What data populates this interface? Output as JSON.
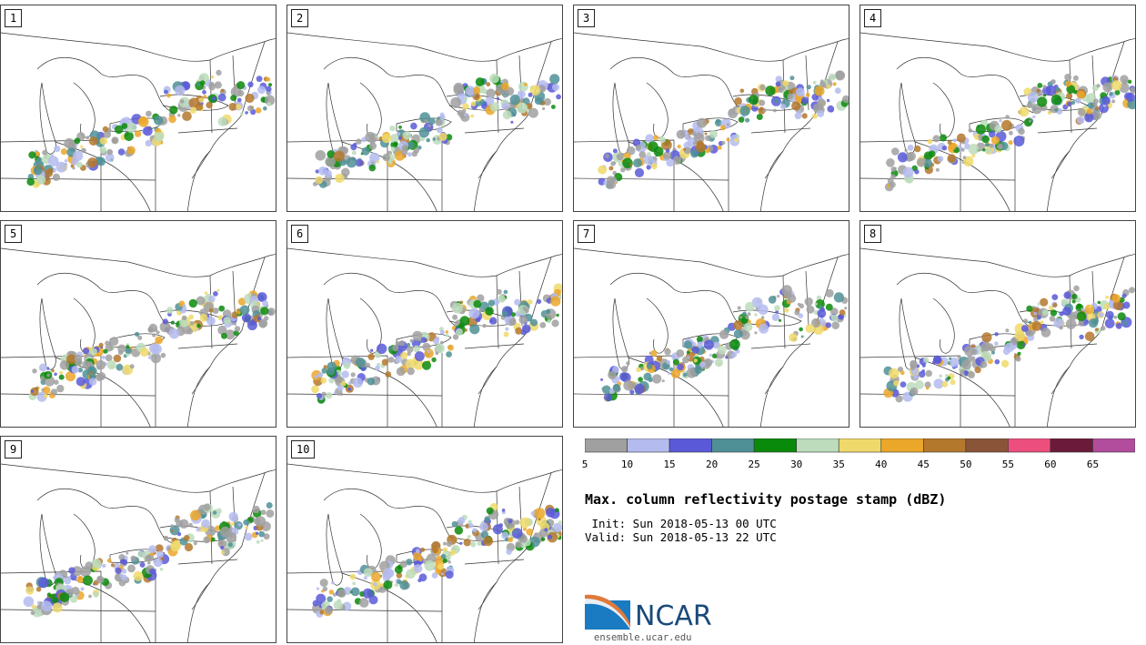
{
  "panels": [
    {
      "label": "1"
    },
    {
      "label": "2"
    },
    {
      "label": "3"
    },
    {
      "label": "4"
    },
    {
      "label": "5"
    },
    {
      "label": "6"
    },
    {
      "label": "7"
    },
    {
      "label": "8"
    },
    {
      "label": "9"
    },
    {
      "label": "10"
    }
  ],
  "colorbar": {
    "ticks": [
      "5",
      "10",
      "15",
      "20",
      "25",
      "30",
      "35",
      "40",
      "45",
      "50",
      "55",
      "60",
      "65"
    ],
    "colors": [
      "#a0a0a0",
      "#b4bbee",
      "#5a5ad8",
      "#4f9096",
      "#0a8a0a",
      "#bcdcbc",
      "#efd96a",
      "#eba72a",
      "#b4782d",
      "#8a5438",
      "#ec4f7d",
      "#6b1a3a",
      "#b24c9c"
    ]
  },
  "title": "Max. column reflectivity postage stamp (dBZ)",
  "init": " Init: Sun 2018-05-13 00 UTC",
  "valid": "Valid: Sun 2018-05-13 22 UTC",
  "logo": {
    "text": "NCAR",
    "url": "ensemble.ucar.edu"
  }
}
